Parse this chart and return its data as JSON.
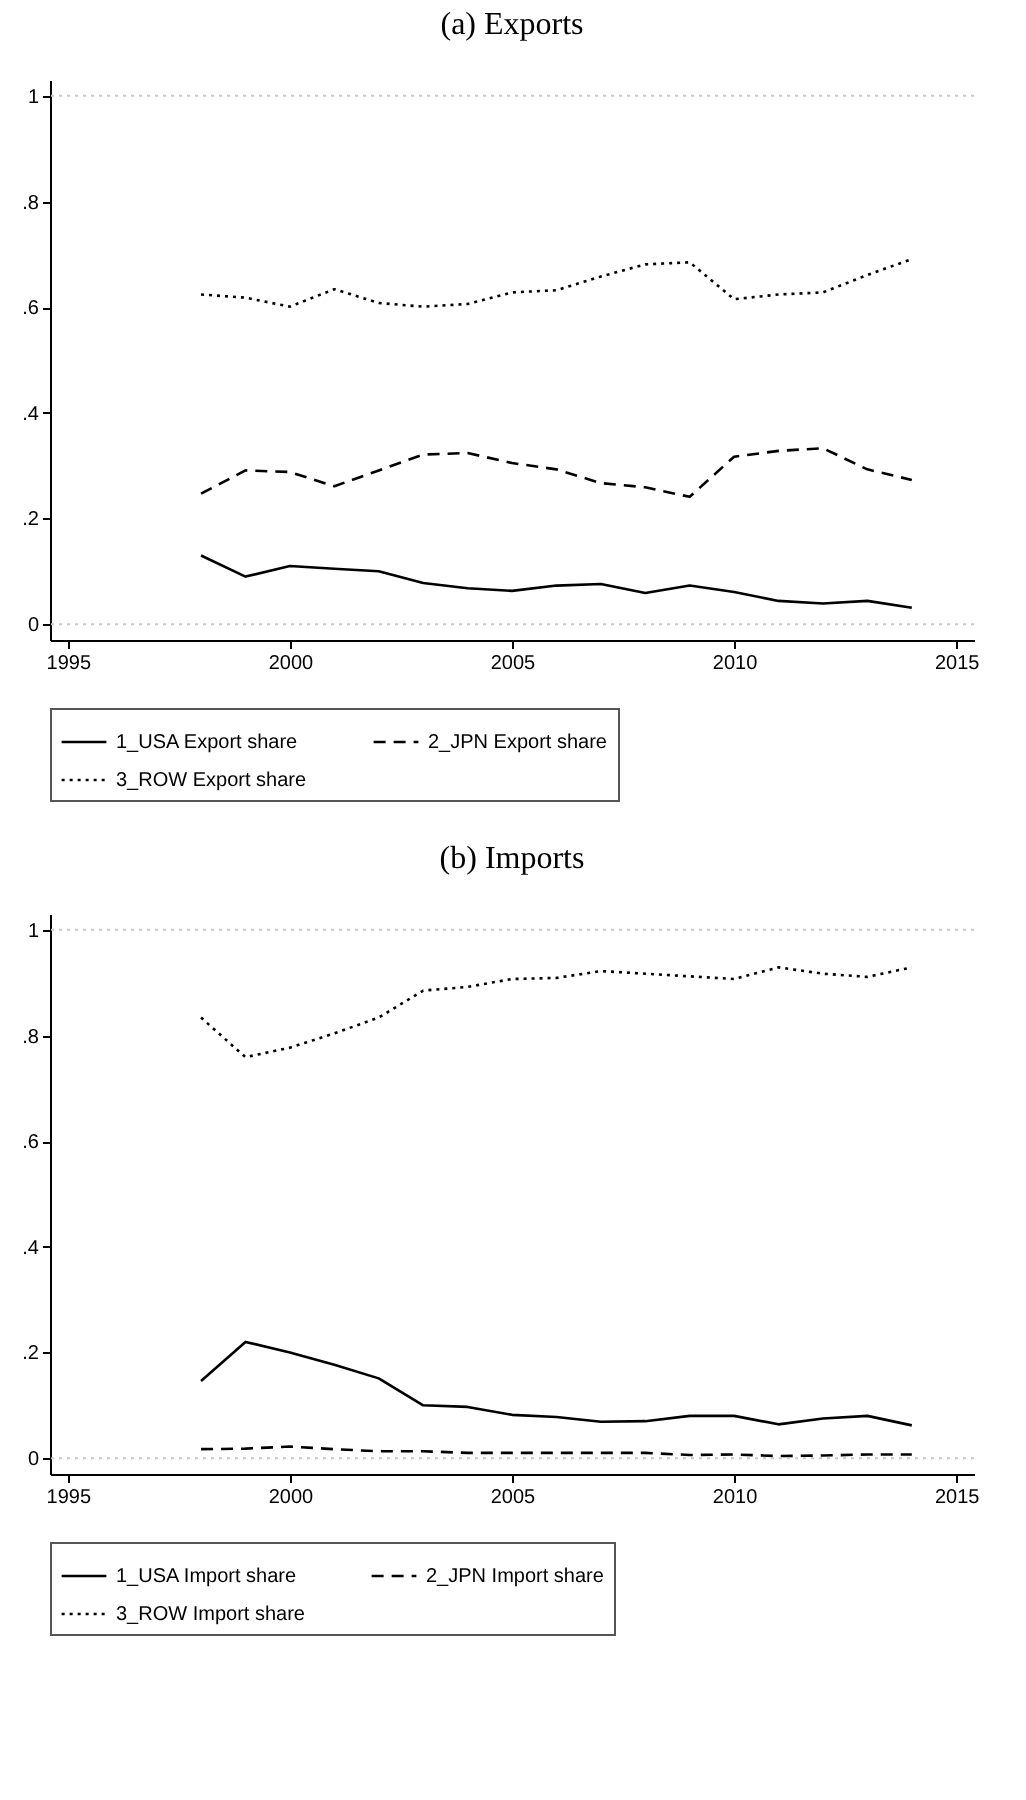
{
  "chart_data": [
    {
      "type": "line",
      "title": "(a) Exports",
      "x": [
        1998,
        1999,
        2000,
        2001,
        2002,
        2003,
        2004,
        2005,
        2006,
        2007,
        2008,
        2009,
        2010,
        2011,
        2012,
        2013,
        2014
      ],
      "series": [
        {
          "name": "1_USA Export share",
          "color": "#000000",
          "line_style": "solid",
          "values": [
            0.13,
            0.09,
            0.11,
            0.105,
            0.1,
            0.078,
            0.068,
            0.063,
            0.073,
            0.076,
            0.059,
            0.073,
            0.061,
            0.044,
            0.039,
            0.044,
            0.031
          ]
        },
        {
          "name": "2_JPN Export share",
          "color": "#000000",
          "line_style": "dashed",
          "values": [
            0.247,
            0.291,
            0.288,
            0.261,
            0.291,
            0.321,
            0.324,
            0.305,
            0.293,
            0.267,
            0.259,
            0.241,
            0.317,
            0.328,
            0.333,
            0.293,
            0.273
          ]
        },
        {
          "name": "3_ROW Export share",
          "color": "#000000",
          "line_style": "dotted",
          "values": [
            0.624,
            0.618,
            0.601,
            0.634,
            0.608,
            0.601,
            0.606,
            0.628,
            0.632,
            0.658,
            0.681,
            0.685,
            0.615,
            0.624,
            0.628,
            0.661,
            0.691
          ]
        }
      ],
      "xlim": [
        1994.6,
        2015.4
      ],
      "xticks": [
        1995,
        2000,
        2005,
        2010,
        2015
      ],
      "ylim": [
        -0.03,
        1.03
      ],
      "yticks": [
        {
          "value": 0,
          "label": "0"
        },
        {
          "value": 0.2,
          "label": ".2"
        },
        {
          "value": 0.4,
          "label": ".4"
        },
        {
          "value": 0.6,
          "label": ".6"
        },
        {
          "value": 0.8,
          "label": ".8"
        },
        {
          "value": 1,
          "label": "1"
        }
      ],
      "ref_lines": [
        {
          "axis": "y",
          "value": 0,
          "color": "#c8c8c8",
          "line_style": "dotted"
        },
        {
          "axis": "y",
          "value": 1,
          "color": "#c8c8c8",
          "line_style": "dotted"
        }
      ],
      "legend": "bottom",
      "marker": "none"
    },
    {
      "type": "line",
      "title": "(b) Imports",
      "x": [
        1998,
        1999,
        2000,
        2001,
        2002,
        2003,
        2004,
        2005,
        2006,
        2007,
        2008,
        2009,
        2010,
        2011,
        2012,
        2013,
        2014
      ],
      "series": [
        {
          "name": "1_USA Import share",
          "color": "#000000",
          "line_style": "solid",
          "values": [
            0.146,
            0.22,
            0.2,
            0.177,
            0.151,
            0.1,
            0.097,
            0.082,
            0.078,
            0.069,
            0.07,
            0.08,
            0.08,
            0.064,
            0.075,
            0.08,
            0.062
          ]
        },
        {
          "name": "2_JPN Import share",
          "color": "#000000",
          "line_style": "dashed",
          "values": [
            0.017,
            0.018,
            0.022,
            0.017,
            0.013,
            0.013,
            0.01,
            0.01,
            0.01,
            0.01,
            0.01,
            0.006,
            0.007,
            0.004,
            0.005,
            0.007,
            0.007
          ]
        },
        {
          "name": "3_ROW Import share",
          "color": "#000000",
          "line_style": "dotted",
          "values": [
            0.834,
            0.759,
            0.777,
            0.804,
            0.834,
            0.885,
            0.892,
            0.907,
            0.909,
            0.922,
            0.917,
            0.912,
            0.907,
            0.929,
            0.917,
            0.911,
            0.929
          ]
        }
      ],
      "xlim": [
        1994.6,
        2015.4
      ],
      "xticks": [
        1995,
        2000,
        2005,
        2010,
        2015
      ],
      "ylim": [
        -0.03,
        1.03
      ],
      "yticks": [
        {
          "value": 0,
          "label": "0"
        },
        {
          "value": 0.2,
          "label": ".2"
        },
        {
          "value": 0.4,
          "label": ".4"
        },
        {
          "value": 0.6,
          "label": ".6"
        },
        {
          "value": 0.8,
          "label": ".8"
        },
        {
          "value": 1,
          "label": "1"
        }
      ],
      "ref_lines": [
        {
          "axis": "y",
          "value": 0,
          "color": "#c8c8c8",
          "line_style": "dotted"
        },
        {
          "axis": "y",
          "value": 1,
          "color": "#c8c8c8",
          "line_style": "dotted"
        }
      ],
      "legend": "bottom",
      "marker": "none"
    }
  ]
}
